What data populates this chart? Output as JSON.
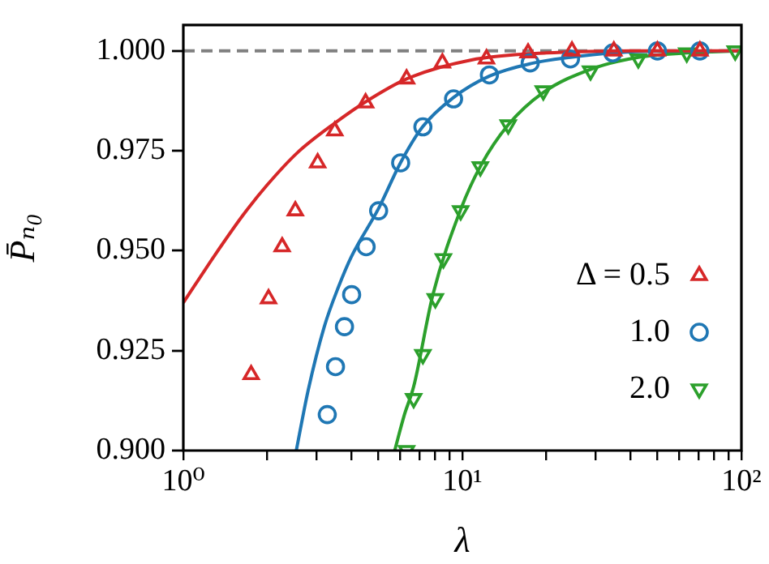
{
  "chart_data": {
    "type": "scatter",
    "xlabel": "λ",
    "ylabel": "P̄ₙ₀",
    "log": "x",
    "grid": false,
    "legend": "bottom right",
    "xlim": [
      1,
      100
    ],
    "ylim": [
      0.9,
      1.0065
    ],
    "xticks": [
      {
        "value": 1,
        "label": "10⁰"
      },
      {
        "value": 2,
        "label": null
      },
      {
        "value": 3,
        "label": null
      },
      {
        "value": 4,
        "label": null
      },
      {
        "value": 5,
        "label": null
      },
      {
        "value": 6,
        "label": null
      },
      {
        "value": 7,
        "label": null
      },
      {
        "value": 8,
        "label": null
      },
      {
        "value": 9,
        "label": null
      },
      {
        "value": 10,
        "label": "10¹"
      },
      {
        "value": 20,
        "label": null
      },
      {
        "value": 30,
        "label": null
      },
      {
        "value": 40,
        "label": null
      },
      {
        "value": 50,
        "label": null
      },
      {
        "value": 60,
        "label": null
      },
      {
        "value": 70,
        "label": null
      },
      {
        "value": 80,
        "label": null
      },
      {
        "value": 90,
        "label": null
      },
      {
        "value": 100,
        "label": "10²"
      }
    ],
    "yticks": [
      {
        "value": 0.9,
        "label": "0.900"
      },
      {
        "value": 0.925,
        "label": "0.925"
      },
      {
        "value": 0.95,
        "label": "0.950"
      },
      {
        "value": 0.975,
        "label": "0.975"
      },
      {
        "value": 1,
        "label": "1.000"
      }
    ],
    "ref_lines": [
      {
        "axis": "y",
        "value": 1,
        "color": "#808080",
        "line_style": "dashed"
      }
    ],
    "series": [
      {
        "name": "Δ = 0.5",
        "marker": "triangle",
        "color": "#d62728",
        "x": [
          1.75,
          2.02,
          2.26,
          2.52,
          3.03,
          3.49,
          4.5,
          6.31,
          8.48,
          12.2,
          17.2,
          24.7,
          34.9,
          50,
          71
        ],
        "values": [
          0.919,
          0.938,
          0.951,
          0.96,
          0.972,
          0.98,
          0.987,
          0.993,
          0.997,
          0.998,
          0.9995,
          1.0,
          1.0,
          1.0,
          1.0
        ]
      },
      {
        "name": "1.0",
        "marker": "circle",
        "color": "#1f77b4",
        "x": [
          3.28,
          3.51,
          3.78,
          4.01,
          4.52,
          5.01,
          6.01,
          7.22,
          9.3,
          12.5,
          17.5,
          24.4,
          34.6,
          50,
          71
        ],
        "values": [
          0.909,
          0.921,
          0.931,
          0.939,
          0.951,
          0.96,
          0.972,
          0.981,
          0.988,
          0.994,
          0.997,
          0.998,
          0.9995,
          1.0,
          1.0
        ]
      },
      {
        "name": "2.0",
        "marker": "triangle-down",
        "color": "#2ca02c",
        "x": [
          6.31,
          6.69,
          7.22,
          8.0,
          8.55,
          9.86,
          11.6,
          14.6,
          19.5,
          28.8,
          42.7,
          63.7,
          95
        ],
        "values": [
          0.9,
          0.913,
          0.924,
          0.938,
          0.948,
          0.96,
          0.971,
          0.9815,
          0.99,
          0.995,
          0.998,
          0.9995,
          1.0
        ]
      },
      {
        "type": "line",
        "marker": "none",
        "color": "#d62728",
        "x": [
          1,
          1.3,
          1.64,
          2.0,
          2.56,
          3.5,
          4.58,
          6.31,
          10.7,
          20,
          40,
          100
        ],
        "values": [
          0.937,
          0.949,
          0.959,
          0.9665,
          0.9745,
          0.982,
          0.9876,
          0.993,
          0.9977,
          0.9995,
          1.0,
          1.0
        ]
      },
      {
        "type": "line",
        "marker": "none",
        "color": "#1f77b4",
        "x": [
          2.54,
          2.8,
          3.2,
          3.6,
          4.0,
          5.01,
          6.0,
          7.2,
          9.27,
          12.5,
          17.5,
          24.4,
          34.6,
          50,
          100
        ],
        "values": [
          0.9,
          0.915,
          0.931,
          0.941,
          0.9485,
          0.9606,
          0.972,
          0.981,
          0.9883,
          0.9937,
          0.9968,
          0.9984,
          0.9995,
          0.9999,
          1.0
        ]
      },
      {
        "type": "line",
        "marker": "none",
        "color": "#2ca02c",
        "x": [
          5.72,
          6.2,
          6.69,
          7.84,
          9.86,
          11.6,
          14.6,
          19.5,
          28.8,
          42.7,
          63.7,
          100
        ],
        "values": [
          0.9,
          0.909,
          0.916,
          0.939,
          0.9603,
          0.9711,
          0.9815,
          0.9896,
          0.9954,
          0.9984,
          0.9995,
          1.0
        ]
      }
    ]
  }
}
